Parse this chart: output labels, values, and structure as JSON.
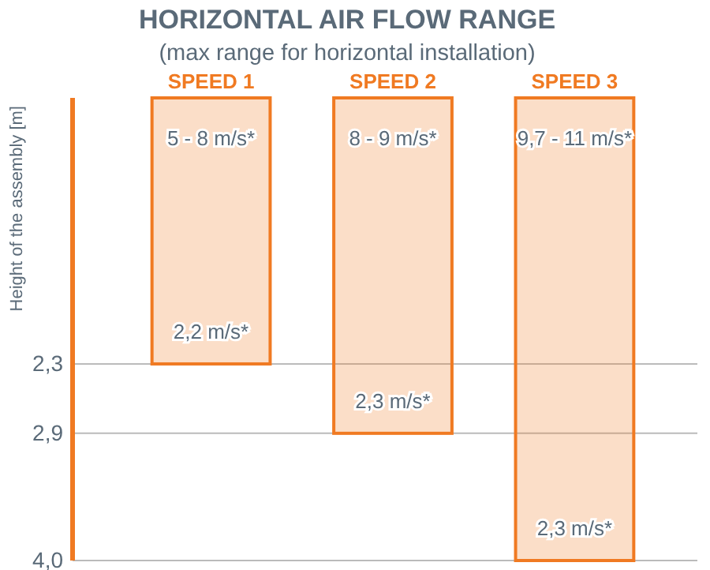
{
  "chart_data": {
    "type": "bar",
    "title": "HORIZONTAL AIR FLOW RANGE",
    "subtitle": "(max range for horizontal installation)",
    "ylabel": "Height of the assembly [m]",
    "categories": [
      "SPEED 1",
      "SPEED 2",
      "SPEED 3"
    ],
    "values": [
      2.3,
      2.9,
      4.0
    ],
    "color": "#f07a22",
    "ylim": [
      4.0,
      0
    ],
    "yticks": [
      {
        "value": 2.3,
        "label": "2,3"
      },
      {
        "value": 2.9,
        "label": "2,9"
      },
      {
        "value": 4.0,
        "label": "4,0"
      }
    ],
    "grid": "y",
    "annotations": [
      "5 - 8 m/s*",
      "2,2 m/s*",
      "8 - 9 m/s*",
      "2,3 m/s*",
      "9,7 - 11 m/s*",
      "2,3 m/s*"
    ]
  }
}
